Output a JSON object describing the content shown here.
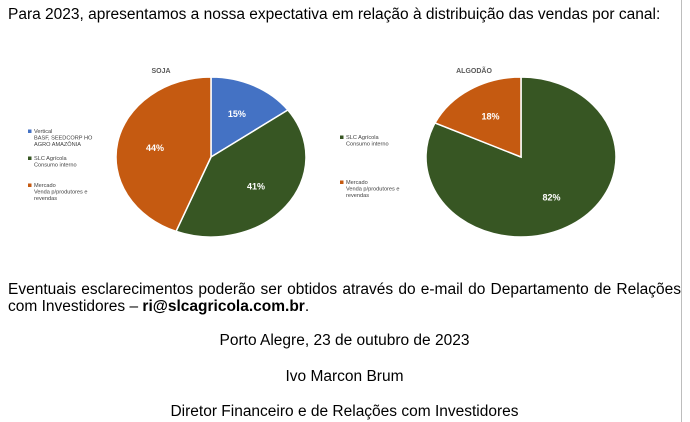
{
  "intro_text": "Para 2023, apresentamos a nossa expectativa em relação à distribuição das vendas por canal:",
  "chart_data": [
    {
      "type": "pie",
      "title": "SOJA",
      "categories": [
        "Vertical BASF, SEEDCORP HO AGRO AMAZÔNIA",
        "SLC Agrícola Consumo interno",
        "Mercado Venda p/produtores e revendas"
      ],
      "values": [
        15,
        41,
        44
      ],
      "labels": [
        "15%",
        "41%",
        "44%"
      ],
      "colors": [
        "#4472c4",
        "#375623",
        "#c55a11"
      ],
      "legend_lines": [
        [
          "Vertical",
          "BASF, SEEDCORP HO",
          "AGRO AMAZÔNIA"
        ],
        [
          "SLC Agrícola",
          "Consumo interno"
        ],
        [
          "Mercado",
          "Venda p/produtores e",
          "revendas"
        ]
      ],
      "legend_position": "left"
    },
    {
      "type": "pie",
      "title": "ALGODÃO",
      "categories": [
        "SLC Agrícola Consumo interno",
        "Mercado Venda p/produtores e revendas"
      ],
      "values": [
        82,
        18
      ],
      "labels": [
        "82%",
        "18%"
      ],
      "colors": [
        "#375623",
        "#c55a11"
      ],
      "legend_lines": [
        [
          "SLC Agrícola",
          "Consumo interno"
        ],
        [
          "Mercado",
          "Venda p/produtores e",
          "revendas"
        ]
      ],
      "legend_position": "left"
    }
  ],
  "contact": {
    "text": "Eventuais esclarecimentos poderão ser obtidos através do e-mail do Departamento de Relações com Investidores – ",
    "email": "ri@slcagricola.com.br",
    "end": "."
  },
  "place_date": "Porto Alegre, 23 de outubro de 2023",
  "signer_name": "Ivo Marcon Brum",
  "signer_title": "Diretor Financeiro e de Relações com Investidores"
}
